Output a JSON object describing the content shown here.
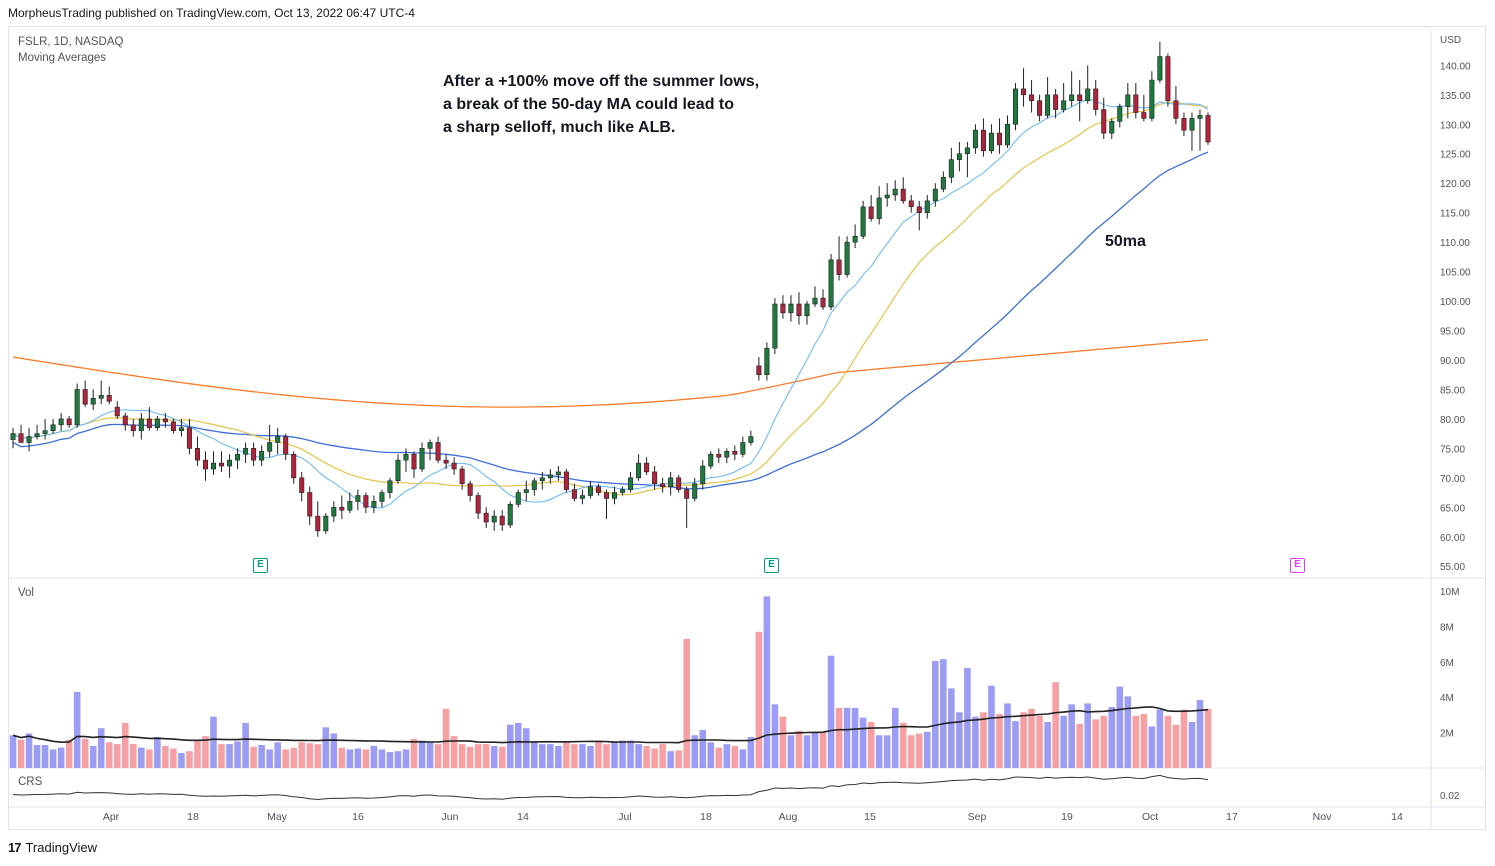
{
  "header": {
    "text": "MorpheusTrading published on TradingView.com, Oct 13, 2022 06:47 UTC-4"
  },
  "symbol": {
    "text": "FSLR, 1D, NASDAQ"
  },
  "indicator": {
    "text": "Moving Averages"
  },
  "annotation": {
    "lines": [
      "After a +100% move off the summer lows,",
      "a break of the 50-day MA could lead to",
      "a sharp selloff, much like ALB."
    ]
  },
  "ma_label": "50ma",
  "volume_pane": {
    "label": "Vol"
  },
  "crs_pane": {
    "label": "CRS",
    "tick": "0.02"
  },
  "footer": {
    "brand": "TradingView",
    "logo": "17"
  },
  "earnings": [
    {
      "label": "E",
      "date": "May",
      "color": "#089981"
    },
    {
      "label": "E",
      "date": "Jul end",
      "color": "#089981"
    },
    {
      "label": "E",
      "date": "Oct end",
      "color": "#e040fb"
    }
  ],
  "colors": {
    "up": "#26a69a",
    "down": "#ef5350",
    "candle_up": "#1b7a3c",
    "candle_down": "#b2223a",
    "ma10": "#64b5f6",
    "ma21": "#e6c34a",
    "ma50": "#3f6fd8",
    "ma200": "#f57c2a",
    "vol_up": "#9b9cf5",
    "vol_down": "#f7a0a4",
    "vol_ma": "#222222"
  },
  "chart_data": {
    "type": "line",
    "currency": "USD",
    "price_axis": {
      "ticks": [
        "140.00",
        "135.00",
        "130.00",
        "125.00",
        "120.00",
        "115.00",
        "110.00",
        "105.00",
        "100.00",
        "95.00",
        "90.00",
        "85.00",
        "80.00",
        "75.00",
        "70.00",
        "65.00",
        "60.00",
        "55.00"
      ],
      "ylim": [
        53,
        146
      ]
    },
    "volume_axis": {
      "ticks": [
        "10M",
        "8M",
        "6M",
        "4M",
        "2M"
      ]
    },
    "time_axis": {
      "ticks": [
        "Apr",
        "18",
        "May",
        "16",
        "Jun",
        "14",
        "Jul",
        "18",
        "Aug",
        "15",
        "Sep",
        "19",
        "Oct",
        "17",
        "Nov",
        "14"
      ]
    },
    "bars": [
      [
        76.5,
        78.5,
        75,
        77.5
      ],
      [
        77.5,
        79,
        76.5,
        76
      ],
      [
        76,
        78.5,
        74.5,
        77
      ],
      [
        77,
        79,
        76.5,
        77.5
      ],
      [
        77.5,
        80,
        76.5,
        78
      ],
      [
        78,
        80,
        77.5,
        79
      ],
      [
        79,
        81,
        78,
        80
      ],
      [
        80,
        80.5,
        78.5,
        79
      ],
      [
        79,
        86,
        78.5,
        85
      ],
      [
        85,
        86.5,
        82,
        82.5
      ],
      [
        82.5,
        85,
        81.5,
        83.5
      ],
      [
        83.5,
        86.5,
        82.5,
        84
      ],
      [
        84,
        85.5,
        82.5,
        83
      ],
      [
        82,
        83,
        80,
        80.5
      ],
      [
        80.5,
        81,
        78,
        79
      ],
      [
        79,
        80,
        77,
        78
      ],
      [
        78,
        81,
        76.5,
        80
      ],
      [
        80,
        82,
        78,
        78.5
      ],
      [
        78.5,
        80.5,
        78,
        80
      ],
      [
        80,
        81,
        78.5,
        79.5
      ],
      [
        79.5,
        80,
        77.5,
        78
      ],
      [
        78,
        80,
        77,
        78.5
      ],
      [
        78.5,
        80,
        74,
        75
      ],
      [
        75,
        77,
        72,
        73
      ],
      [
        73,
        74.5,
        69.5,
        71.5
      ],
      [
        71.5,
        74.5,
        70.5,
        72.5
      ],
      [
        72.5,
        74.5,
        71,
        72
      ],
      [
        72,
        74,
        70,
        73
      ],
      [
        73,
        75,
        71.5,
        74
      ],
      [
        74,
        76,
        72.5,
        75
      ],
      [
        75,
        76,
        72,
        73
      ],
      [
        73,
        75.5,
        72,
        74.5
      ],
      [
        74.5,
        79,
        73.5,
        76
      ],
      [
        76,
        78.5,
        74,
        77
      ],
      [
        77,
        77.5,
        73,
        74
      ],
      [
        74,
        74.5,
        69,
        70
      ],
      [
        70,
        71,
        66,
        67.5
      ],
      [
        67.5,
        68.5,
        62,
        63.5
      ],
      [
        63.5,
        66,
        60,
        61
      ],
      [
        61,
        64,
        60.5,
        63.5
      ],
      [
        63.5,
        66,
        62.5,
        65
      ],
      [
        65,
        67,
        63,
        64.5
      ],
      [
        64.5,
        67.5,
        64,
        66
      ],
      [
        66,
        68,
        64.5,
        67
      ],
      [
        67,
        67.5,
        64,
        65
      ],
      [
        65,
        67,
        64,
        66
      ],
      [
        66,
        68,
        65,
        67.5
      ],
      [
        67.5,
        70,
        66.5,
        69.5
      ],
      [
        69.5,
        74,
        69,
        73
      ],
      [
        73,
        75,
        71,
        74
      ],
      [
        74,
        74.5,
        70,
        71.5
      ],
      [
        71.5,
        76,
        71,
        75
      ],
      [
        75,
        76.5,
        73,
        76
      ],
      [
        76,
        77,
        72.5,
        73
      ],
      [
        73,
        74,
        71.5,
        72.5
      ],
      [
        72.5,
        73.5,
        70.5,
        71.5
      ],
      [
        71.5,
        72,
        68,
        69
      ],
      [
        69,
        69.5,
        66,
        67
      ],
      [
        67,
        67.5,
        63,
        64
      ],
      [
        64,
        65,
        61.5,
        62.5
      ],
      [
        62.5,
        64.5,
        61,
        63.5
      ],
      [
        63.5,
        64.5,
        61,
        62
      ],
      [
        62,
        66,
        61.5,
        65.5
      ],
      [
        65.5,
        68,
        65,
        67.5
      ],
      [
        67.5,
        69.5,
        66,
        68
      ],
      [
        68,
        70,
        67,
        69.5
      ],
      [
        69.5,
        71,
        68,
        70
      ],
      [
        70,
        71.5,
        69,
        70.5
      ],
      [
        70.5,
        72,
        69.5,
        71
      ],
      [
        71,
        71.5,
        67.5,
        68
      ],
      [
        68,
        69,
        66,
        66.5
      ],
      [
        66.5,
        68,
        65.5,
        67
      ],
      [
        67,
        69.5,
        66.5,
        68.5
      ],
      [
        68.5,
        69,
        67,
        67.5
      ],
      [
        67.5,
        68,
        63,
        66.5
      ],
      [
        66.5,
        68.5,
        65.5,
        67.5
      ],
      [
        67.5,
        68.5,
        67,
        68
      ],
      [
        68,
        71,
        67.5,
        70
      ],
      [
        70,
        74,
        69.5,
        72.5
      ],
      [
        72.5,
        73.5,
        70.5,
        71
      ],
      [
        71,
        72,
        68,
        69
      ],
      [
        69,
        70,
        67.5,
        68.5
      ],
      [
        68.5,
        71,
        67,
        70
      ],
      [
        70,
        70.5,
        67.5,
        68
      ],
      [
        68,
        68.5,
        61.5,
        66.5
      ],
      [
        66.5,
        70,
        66,
        69
      ],
      [
        69,
        73,
        68,
        72
      ],
      [
        72,
        74.5,
        71.5,
        74
      ],
      [
        74,
        75,
        72.5,
        73.5
      ],
      [
        73.5,
        75,
        72.5,
        74.5
      ],
      [
        74.5,
        75.5,
        73,
        74
      ],
      [
        74,
        77,
        73.5,
        76
      ],
      [
        76,
        78,
        75.5,
        77
      ],
      [
        89,
        90.5,
        86.5,
        87.5
      ],
      [
        87.5,
        93,
        86.5,
        92
      ],
      [
        92,
        100.5,
        91,
        99.5
      ],
      [
        99.5,
        101,
        97,
        98
      ],
      [
        98,
        101,
        96.5,
        99.5
      ],
      [
        99.5,
        101.5,
        96,
        97.5
      ],
      [
        97.5,
        100,
        96,
        99.5
      ],
      [
        99.5,
        102.5,
        99,
        100.5
      ],
      [
        100.5,
        102,
        98.5,
        99
      ],
      [
        99,
        108,
        98.5,
        107
      ],
      [
        107,
        111,
        103.5,
        104.5
      ],
      [
        104.5,
        111,
        104,
        110
      ],
      [
        110,
        113,
        109,
        111
      ],
      [
        111,
        117,
        110.5,
        116
      ],
      [
        116,
        118,
        113.5,
        114
      ],
      [
        114,
        119.5,
        113,
        117.5
      ],
      [
        117.5,
        120,
        116,
        118
      ],
      [
        118,
        120.5,
        117,
        119
      ],
      [
        119,
        121,
        116.5,
        117
      ],
      [
        117,
        118,
        115,
        116
      ],
      [
        116,
        117,
        112,
        115
      ],
      [
        115,
        118,
        114,
        117
      ],
      [
        117,
        120,
        116,
        119
      ],
      [
        119,
        122,
        118.5,
        121
      ],
      [
        121,
        126,
        120,
        124
      ],
      [
        124,
        127,
        122,
        125
      ],
      [
        125,
        127,
        121,
        126
      ],
      [
        126,
        130,
        125,
        129
      ],
      [
        129,
        131,
        124.5,
        125.5
      ],
      [
        125.5,
        130,
        125,
        128.5
      ],
      [
        128.5,
        131,
        125,
        126.5
      ],
      [
        126.5,
        131.5,
        126,
        130
      ],
      [
        130,
        137,
        129,
        136
      ],
      [
        136,
        139.5,
        133,
        135
      ],
      [
        135,
        137.5,
        132,
        134
      ],
      [
        134,
        135,
        130.5,
        131.5
      ],
      [
        131.5,
        138,
        131,
        135
      ],
      [
        135,
        136,
        131,
        132.5
      ],
      [
        132.5,
        137,
        132,
        134
      ],
      [
        134,
        139,
        133,
        135
      ],
      [
        135,
        137.5,
        130.5,
        134
      ],
      [
        134,
        140,
        133.5,
        136
      ],
      [
        136,
        137.5,
        131.5,
        132.5
      ],
      [
        132.5,
        134.5,
        127.5,
        128.5
      ],
      [
        128.5,
        131,
        127.5,
        130.5
      ],
      [
        130.5,
        133.5,
        129.5,
        133
      ],
      [
        133,
        137,
        131,
        135
      ],
      [
        135,
        137,
        131,
        132
      ],
      [
        132,
        135,
        130.5,
        131
      ],
      [
        131,
        139,
        130.5,
        137.5
      ],
      [
        137.5,
        144,
        137,
        141.5
      ],
      [
        141.5,
        142,
        133,
        134
      ],
      [
        134,
        136.5,
        130,
        131
      ],
      [
        131,
        132,
        128,
        129
      ],
      [
        129,
        132,
        125.5,
        131
      ],
      [
        131,
        132.5,
        125.5,
        131.5
      ],
      [
        131.5,
        132,
        126.5,
        127
      ]
    ],
    "volume": [
      1.85,
      1.6,
      1.95,
      1.3,
      1.3,
      1.05,
      1.15,
      1.6,
      4.3,
      1.65,
      1.25,
      2.25,
      1.45,
      1.35,
      2.55,
      1.35,
      1.15,
      1.05,
      1.75,
      1.25,
      1.1,
      0.85,
      0.95,
      1.55,
      1.8,
      2.9,
      1.35,
      1.35,
      1.5,
      2.55,
      1.2,
      1.3,
      1.05,
      1.45,
      1.05,
      1.15,
      1.45,
      1.4,
      1.35,
      2.3,
      1.95,
      1.15,
      1.05,
      1.1,
      1.05,
      1.25,
      1.05,
      0.9,
      0.95,
      1.05,
      1.65,
      1.55,
      1.45,
      1.35,
      3.35,
      1.8,
      1.35,
      1.2,
      1.35,
      1.35,
      1.25,
      1.2,
      2.45,
      2.55,
      2.25,
      1.45,
      1.35,
      1.35,
      1.25,
      1.45,
      1.35,
      1.35,
      1.25,
      1.55,
      1.35,
      1.45,
      1.55,
      1.55,
      1.35,
      1.25,
      1.1,
      1.35,
      0.95,
      1.0,
      7.3,
      1.85,
      2.15,
      1.45,
      1.15,
      1.35,
      1.25,
      1.05,
      1.75,
      7.7,
      9.7,
      3.6,
      2.9,
      1.85,
      2.1,
      1.85,
      2.05,
      2.0,
      6.35,
      3.4,
      3.4,
      3.4,
      2.85,
      2.6,
      1.85,
      1.85,
      3.4,
      2.55,
      1.85,
      1.95,
      2.05,
      6.05,
      6.15,
      4.5,
      3.15,
      5.65,
      2.9,
      3.15,
      4.65,
      3.05,
      3.65,
      2.65,
      3.15,
      3.35,
      2.95,
      2.6,
      4.85,
      2.95,
      3.6,
      2.5,
      3.65,
      2.75,
      2.95,
      3.45,
      4.6,
      4.05,
      2.95,
      3.05,
      2.35,
      3.3,
      2.95,
      2.45,
      3.3,
      2.6,
      3.85,
      3.35
    ],
    "moving_averages": [
      {
        "name": "50ma",
        "period": 50
      },
      {
        "period": 10
      },
      {
        "period": 21
      },
      {
        "period": 200
      }
    ],
    "annotation": "After a +100% move off the summer lows, a break of the 50-day MA could lead to a sharp selloff, much like ALB."
  }
}
